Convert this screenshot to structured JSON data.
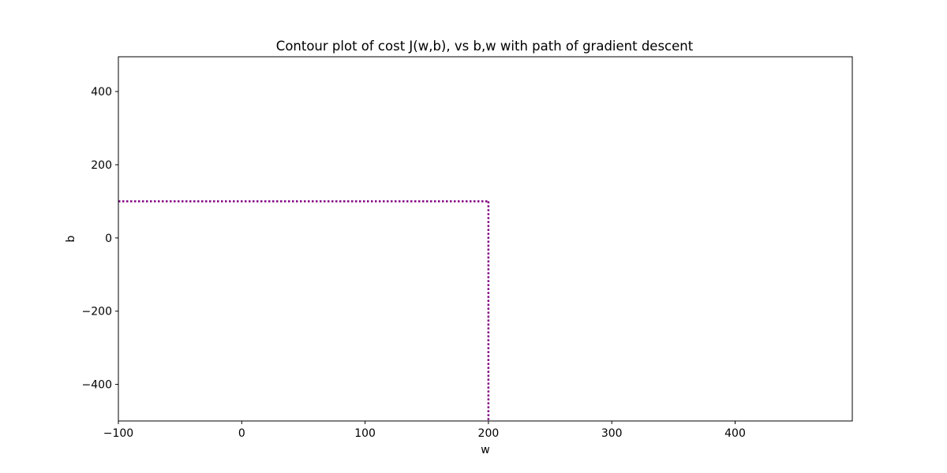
{
  "chart_data": {
    "type": "line",
    "title": "Contour plot of cost J(w,b), vs b,w with path of gradient descent",
    "xlabel": "w",
    "ylabel": "b",
    "xlim": [
      -100,
      495
    ],
    "ylim": [
      -500,
      495
    ],
    "xticks": [
      -100,
      0,
      100,
      200,
      300,
      400
    ],
    "xtick_labels": [
      "−100",
      "0",
      "100",
      "200",
      "300",
      "400"
    ],
    "yticks": [
      -400,
      -200,
      0,
      200,
      400
    ],
    "ytick_labels": [
      "−400",
      "−200",
      "0",
      "200",
      "400"
    ],
    "grid": false,
    "series": [
      {
        "style": "dotted",
        "color": "#800080",
        "x": [
          -100,
          200
        ],
        "y": [
          100,
          100
        ]
      },
      {
        "style": "dotted",
        "color": "#800080",
        "x": [
          200,
          200
        ],
        "y": [
          100,
          -500
        ]
      }
    ]
  }
}
